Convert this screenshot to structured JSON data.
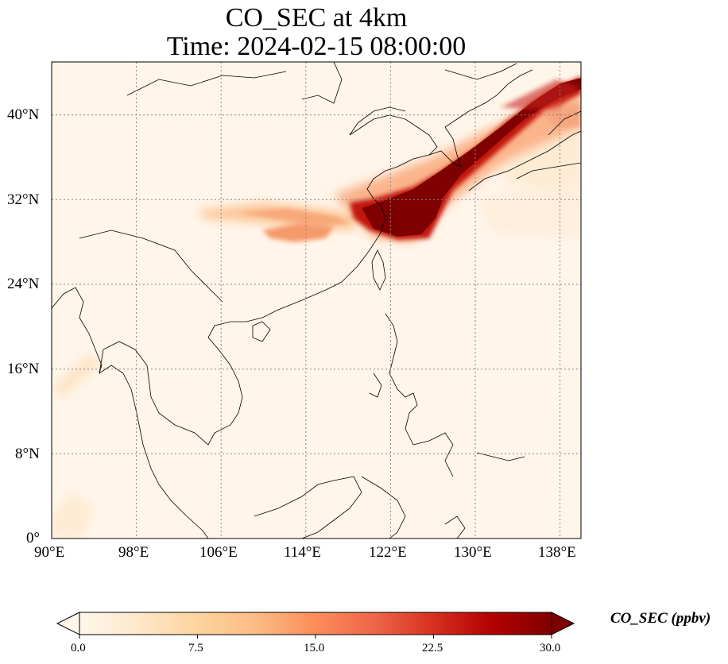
{
  "title_line1": "CO_SEC at 4km",
  "title_line2": "Time: 2024-02-15 08:00:00",
  "x_ticks": [
    "90°E",
    "98°E",
    "106°E",
    "114°E",
    "122°E",
    "130°E",
    "138°E"
  ],
  "y_ticks": [
    "40°N",
    "32°N",
    "24°N",
    "16°N",
    "8°N",
    "0°"
  ],
  "colorbar": {
    "label": "CO_SEC (ppbv)",
    "ticks": [
      "0.0",
      "7.5",
      "15.0",
      "22.5",
      "30.0"
    ],
    "min": 0,
    "max": 30,
    "extend": "both",
    "colormap": [
      "#fff7ec",
      "#fee8c8",
      "#fdd49e",
      "#fdbb84",
      "#fc8d59",
      "#ef6548",
      "#d7301f",
      "#b30000",
      "#7f0000"
    ]
  },
  "map": {
    "lon_range": [
      90,
      140
    ],
    "lat_range": [
      0,
      45
    ],
    "gridlines": "dotted",
    "background_color": "#fff5e9",
    "plume_color": "#7f0000"
  }
}
